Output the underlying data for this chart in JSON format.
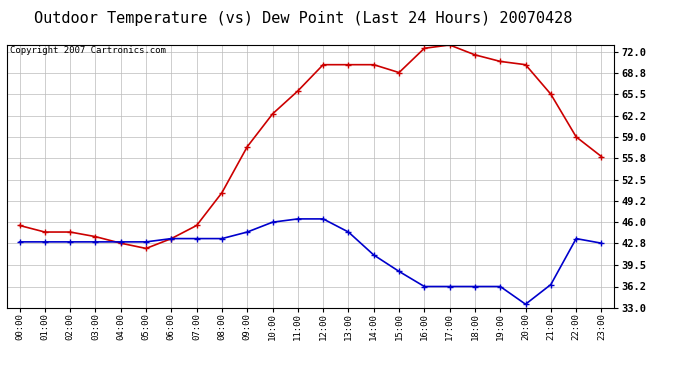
{
  "title": "Outdoor Temperature (vs) Dew Point (Last 24 Hours) 20070428",
  "copyright": "Copyright 2007 Cartronics.com",
  "hours": [
    "00:00",
    "01:00",
    "02:00",
    "03:00",
    "04:00",
    "05:00",
    "06:00",
    "07:00",
    "08:00",
    "09:00",
    "10:00",
    "11:00",
    "12:00",
    "13:00",
    "14:00",
    "15:00",
    "16:00",
    "17:00",
    "18:00",
    "19:00",
    "20:00",
    "21:00",
    "22:00",
    "23:00"
  ],
  "temp": [
    45.5,
    44.5,
    44.5,
    43.8,
    42.8,
    42.0,
    43.5,
    45.5,
    50.5,
    57.5,
    62.5,
    66.0,
    70.0,
    70.0,
    70.0,
    68.8,
    72.5,
    73.0,
    71.5,
    70.5,
    70.0,
    65.5,
    59.0,
    56.0
  ],
  "dew": [
    43.0,
    43.0,
    43.0,
    43.0,
    43.0,
    43.0,
    43.5,
    43.5,
    43.5,
    44.5,
    46.0,
    46.5,
    46.5,
    44.5,
    41.0,
    38.5,
    36.2,
    36.2,
    36.2,
    36.2,
    33.5,
    36.5,
    43.5,
    42.8
  ],
  "temp_color": "#cc0000",
  "dew_color": "#0000cc",
  "bg_color": "#ffffff",
  "plot_bg": "#ffffff",
  "grid_color": "#bbbbbb",
  "ylim": [
    33.0,
    73.0
  ],
  "yticks": [
    33.0,
    36.2,
    39.5,
    42.8,
    46.0,
    49.2,
    52.5,
    55.8,
    59.0,
    62.2,
    65.5,
    68.8,
    72.0
  ],
  "title_fontsize": 11,
  "copyright_fontsize": 6.5,
  "marker": "+",
  "marker_size": 5,
  "marker_edge_width": 1.0,
  "line_width": 1.2
}
